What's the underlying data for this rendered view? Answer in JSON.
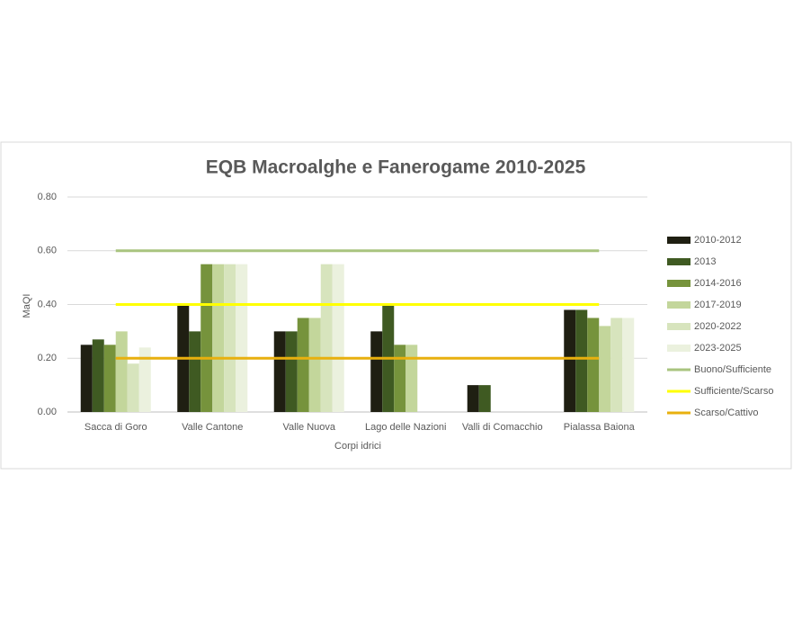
{
  "chart_data": {
    "type": "bar",
    "title": "EQB Macroalghe e Fanerogame 2010-2025",
    "x_label": "Corpi idrici",
    "y_label": "MaQI",
    "categories": [
      "Sacca di Goro",
      "Valle Cantone",
      "Valle Nuova",
      "Lago delle Nazioni",
      "Valli di Comacchio",
      "Pialassa Baiona"
    ],
    "ylim": [
      0,
      0.8
    ],
    "yticks": [
      {
        "value": 0,
        "label": "0.00"
      },
      {
        "value": 0.2,
        "label": "0.20"
      },
      {
        "value": 0.4,
        "label": "0.40"
      },
      {
        "value": 0.6,
        "label": "0.60"
      },
      {
        "value": 0.8,
        "label": "0.80"
      }
    ],
    "grid": true,
    "legend": "right",
    "series": [
      {
        "name": "2010-2012",
        "color": "#1f1f12",
        "values": [
          0.25,
          0.4,
          0.3,
          0.3,
          0.1,
          0.38
        ]
      },
      {
        "name": "2013",
        "color": "#3f5a22",
        "values": [
          0.27,
          0.3,
          0.3,
          0.4,
          0.1,
          0.38
        ]
      },
      {
        "name": "2014-2016",
        "color": "#76933c",
        "values": [
          0.25,
          0.55,
          0.35,
          0.25,
          null,
          0.35
        ]
      },
      {
        "name": "2017-2019",
        "color": "#c3d69b",
        "values": [
          0.3,
          0.55,
          0.35,
          0.25,
          null,
          0.32
        ]
      },
      {
        "name": "2020-2022",
        "color": "#d7e4bd",
        "values": [
          0.18,
          0.55,
          0.55,
          null,
          null,
          0.35
        ]
      },
      {
        "name": "2023-2025",
        "color": "#ebf1de",
        "values": [
          0.24,
          0.55,
          0.55,
          null,
          null,
          0.35
        ]
      },
      {
        "name": "Buono/Sufficiente",
        "type": "line",
        "color": "#a9c47f",
        "values": [
          0.6,
          0.6,
          0.6,
          0.6,
          0.6,
          0.6
        ]
      },
      {
        "name": "Sufficiente/Scarso",
        "type": "line",
        "color": "#ffff00",
        "values": [
          0.4,
          0.4,
          0.4,
          0.4,
          0.4,
          0.4
        ]
      },
      {
        "name": "Scarso/Cattivo",
        "type": "line",
        "color": "#e8b00e",
        "values": [
          0.2,
          0.2,
          0.2,
          0.2,
          0.2,
          0.2
        ]
      }
    ]
  }
}
